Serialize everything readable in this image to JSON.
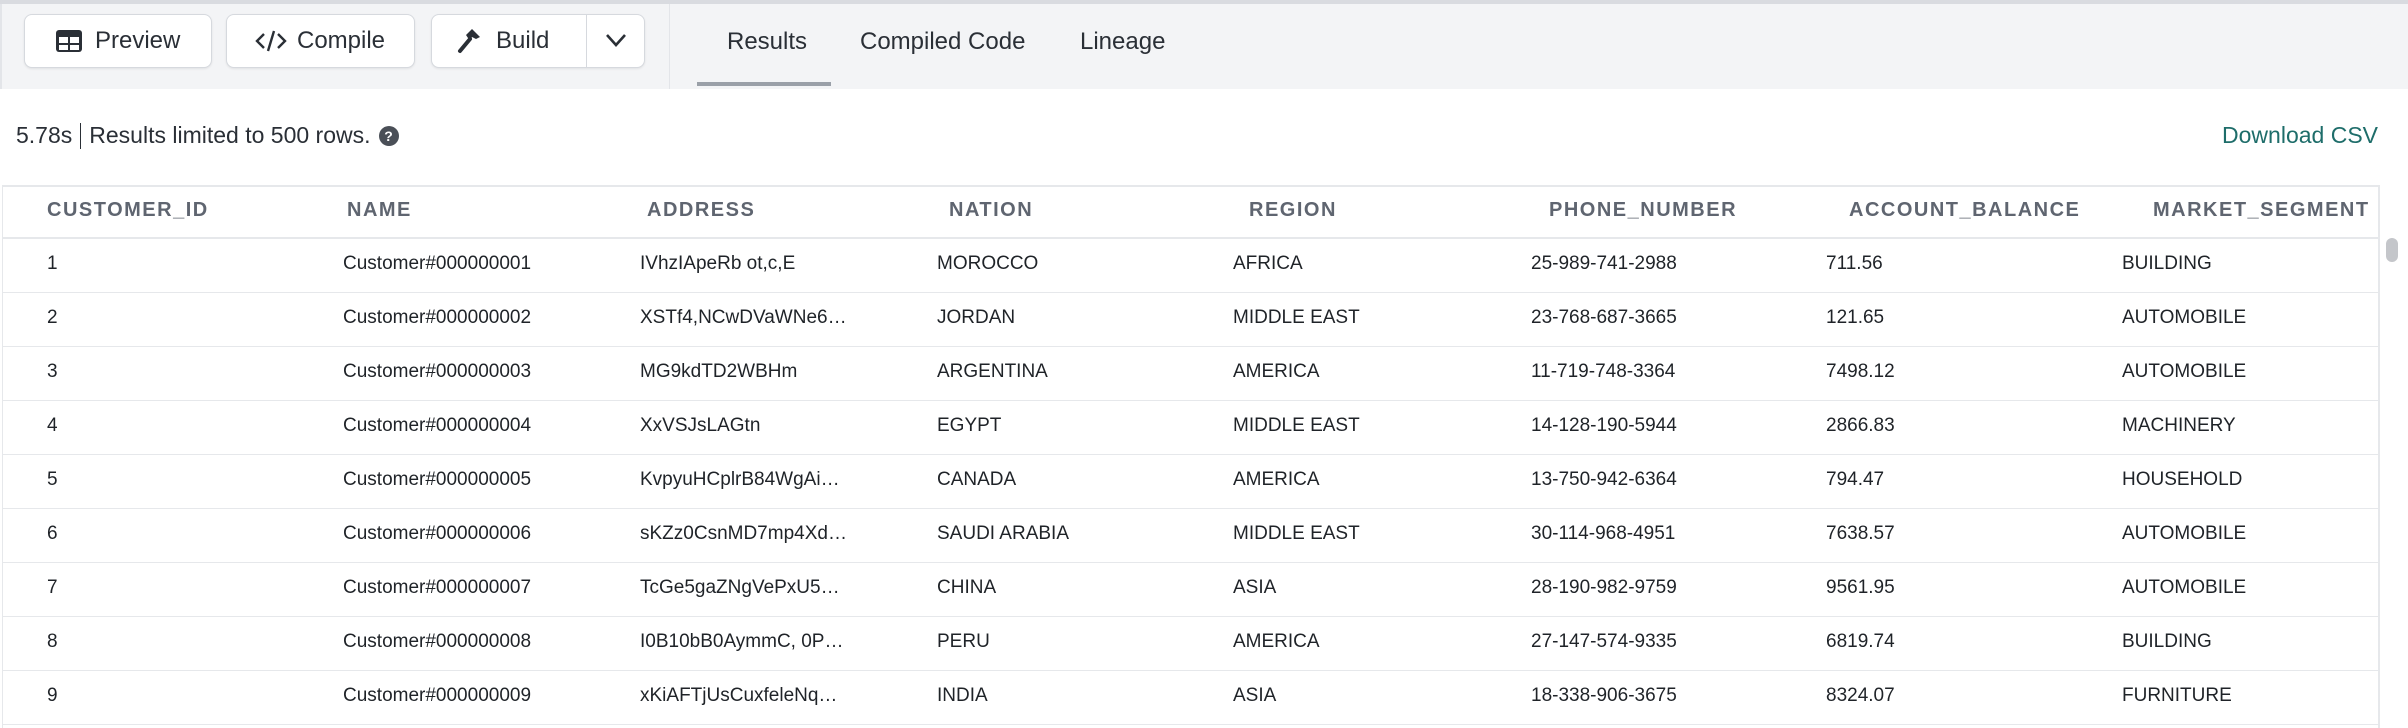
{
  "toolbar": {
    "preview": "Preview",
    "compile": "Compile",
    "build": "Build"
  },
  "tabs": [
    {
      "label": "Results",
      "active": true
    },
    {
      "label": "Compiled Code"
    },
    {
      "label": "Lineage"
    }
  ],
  "status": {
    "time": "5.78s",
    "message": "Results limited to 500 rows.",
    "help": "?"
  },
  "download": "Download CSV",
  "colors": {
    "accent": "#1e6d6a",
    "toolbar_bg": "#f3f4f6"
  },
  "columns": [
    "CUSTOMER_ID",
    "NAME",
    "ADDRESS",
    "NATION",
    "REGION",
    "PHONE_NUMBER",
    "ACCOUNT_BALANCE",
    "MARKET_SEGMENT"
  ],
  "rows": [
    [
      "1",
      "Customer#000000001",
      "IVhzIApeRb ot,c,E",
      "MOROCCO",
      "AFRICA",
      "25-989-741-2988",
      "711.56",
      "BUILDING"
    ],
    [
      "2",
      "Customer#000000002",
      "XSTf4,NCwDVaWNe6…",
      "JORDAN",
      "MIDDLE EAST",
      "23-768-687-3665",
      "121.65",
      "AUTOMOBILE"
    ],
    [
      "3",
      "Customer#000000003",
      "MG9kdTD2WBHm",
      "ARGENTINA",
      "AMERICA",
      "11-719-748-3364",
      "7498.12",
      "AUTOMOBILE"
    ],
    [
      "4",
      "Customer#000000004",
      "XxVSJsLAGtn",
      "EGYPT",
      "MIDDLE EAST",
      "14-128-190-5944",
      "2866.83",
      "MACHINERY"
    ],
    [
      "5",
      "Customer#000000005",
      "KvpyuHCplrB84WgAi…",
      "CANADA",
      "AMERICA",
      "13-750-942-6364",
      "794.47",
      "HOUSEHOLD"
    ],
    [
      "6",
      "Customer#000000006",
      "sKZz0CsnMD7mp4Xd…",
      "SAUDI ARABIA",
      "MIDDLE EAST",
      "30-114-968-4951",
      "7638.57",
      "AUTOMOBILE"
    ],
    [
      "7",
      "Customer#000000007",
      "TcGe5gaZNgVePxU5…",
      "CHINA",
      "ASIA",
      "28-190-982-9759",
      "9561.95",
      "AUTOMOBILE"
    ],
    [
      "8",
      "Customer#000000008",
      "I0B10bB0AymmC, 0P…",
      "PERU",
      "AMERICA",
      "27-147-574-9335",
      "6819.74",
      "BUILDING"
    ],
    [
      "9",
      "Customer#000000009",
      "xKiAFTjUsCuxfeleNq…",
      "INDIA",
      "ASIA",
      "18-338-906-3675",
      "8324.07",
      "FURNITURE"
    ]
  ]
}
